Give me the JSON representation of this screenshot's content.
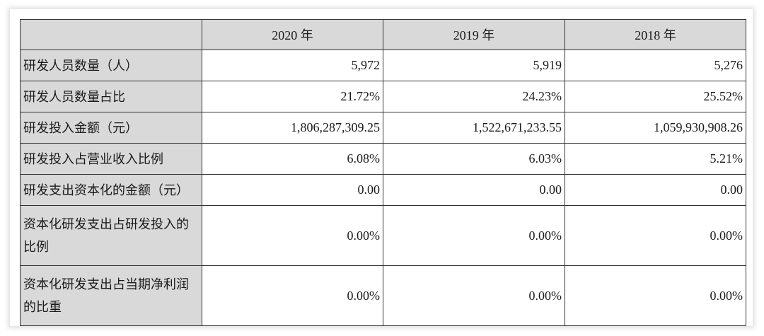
{
  "table": {
    "corner": "",
    "columns": [
      "2020 年",
      "2019 年",
      "2018 年"
    ],
    "rows": [
      {
        "label": "研发人员数量（人）",
        "values": [
          "5,972",
          "5,919",
          "5,276"
        ]
      },
      {
        "label": "研发人员数量占比",
        "values": [
          "21.72%",
          "24.23%",
          "25.52%"
        ]
      },
      {
        "label": "研发投入金额（元）",
        "values": [
          "1,806,287,309.25",
          "1,522,671,233.55",
          "1,059,930,908.26"
        ]
      },
      {
        "label": "研发投入占营业收入比例",
        "values": [
          "6.08%",
          "6.03%",
          "5.21%"
        ]
      },
      {
        "label": "研发支出资本化的金额（元）",
        "values": [
          "0.00",
          "0.00",
          "0.00"
        ]
      },
      {
        "label": "资本化研发支出占研发投入的比例",
        "values": [
          "0.00%",
          "0.00%",
          "0.00%"
        ]
      },
      {
        "label": "资本化研发支出占当期净利润的比重",
        "values": [
          "0.00%",
          "0.00%",
          "0.00%"
        ]
      }
    ]
  }
}
